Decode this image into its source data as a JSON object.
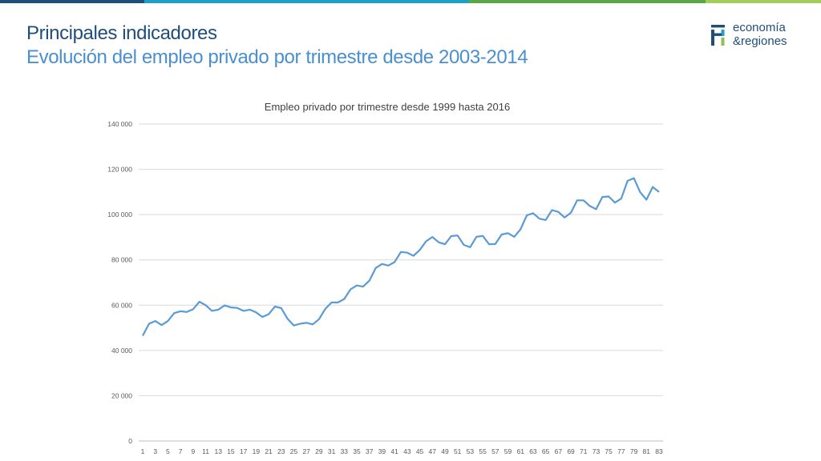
{
  "header": {
    "title": "Principales indicadores",
    "subtitle": "Evolución del empleo privado por trimestre desde 2003-2014"
  },
  "logo": {
    "line1": "economía",
    "line2": "&regiones",
    "colors": [
      "#1f4e79",
      "#1ea0c6",
      "#8cc152"
    ]
  },
  "top_bar_colors": [
    "#1f4e79",
    "#1ea0c6",
    "#5aa74a",
    "#a3cc5a"
  ],
  "chart_data": {
    "type": "line",
    "title": "Empleo privado por trimestre desde 1999 hasta 2016",
    "xlabel": "",
    "ylabel": "",
    "ylim": [
      0,
      140000
    ],
    "yticks": [
      "0",
      "20 000",
      "40 000",
      "60 000",
      "80 000",
      "100 000",
      "120 000",
      "140 000"
    ],
    "xticks": [
      "1",
      "3",
      "5",
      "7",
      "9",
      "11",
      "13",
      "15",
      "17",
      "19",
      "21",
      "23",
      "25",
      "27",
      "29",
      "31",
      "33",
      "35",
      "37",
      "39",
      "41",
      "43",
      "45",
      "47",
      "49",
      "51",
      "53",
      "55",
      "57",
      "59",
      "61",
      "63",
      "65",
      "67",
      "69",
      "71",
      "73",
      "75",
      "77",
      "79",
      "81",
      "83"
    ],
    "grid": true,
    "line_color": "#5b9bd5",
    "series": [
      {
        "values": [
          46500,
          51800,
          53000,
          51200,
          53000,
          56500,
          57300,
          57000,
          58200,
          61500,
          60000,
          57500,
          58000,
          59900,
          59000,
          58800,
          57500,
          58000,
          56800,
          54800,
          56000,
          59400,
          58700,
          54000,
          51000,
          51800,
          52200,
          51500,
          53800,
          58400,
          61200,
          61200,
          62700,
          67000,
          68700,
          68200,
          70800,
          76400,
          78200,
          77500,
          79000,
          83500,
          83200,
          81800,
          84400,
          88200,
          90100,
          87800,
          86900,
          90500,
          90800,
          86600,
          85600,
          90200,
          90600,
          86900,
          87000,
          91200,
          91800,
          90200,
          93500,
          99700,
          100600,
          98200,
          97600,
          102000,
          101200,
          98700,
          100800,
          106300,
          106300,
          103800,
          102400,
          107800,
          108000,
          105300,
          107100,
          114900,
          116100,
          109900,
          106600,
          112200,
          110000
        ]
      }
    ]
  }
}
